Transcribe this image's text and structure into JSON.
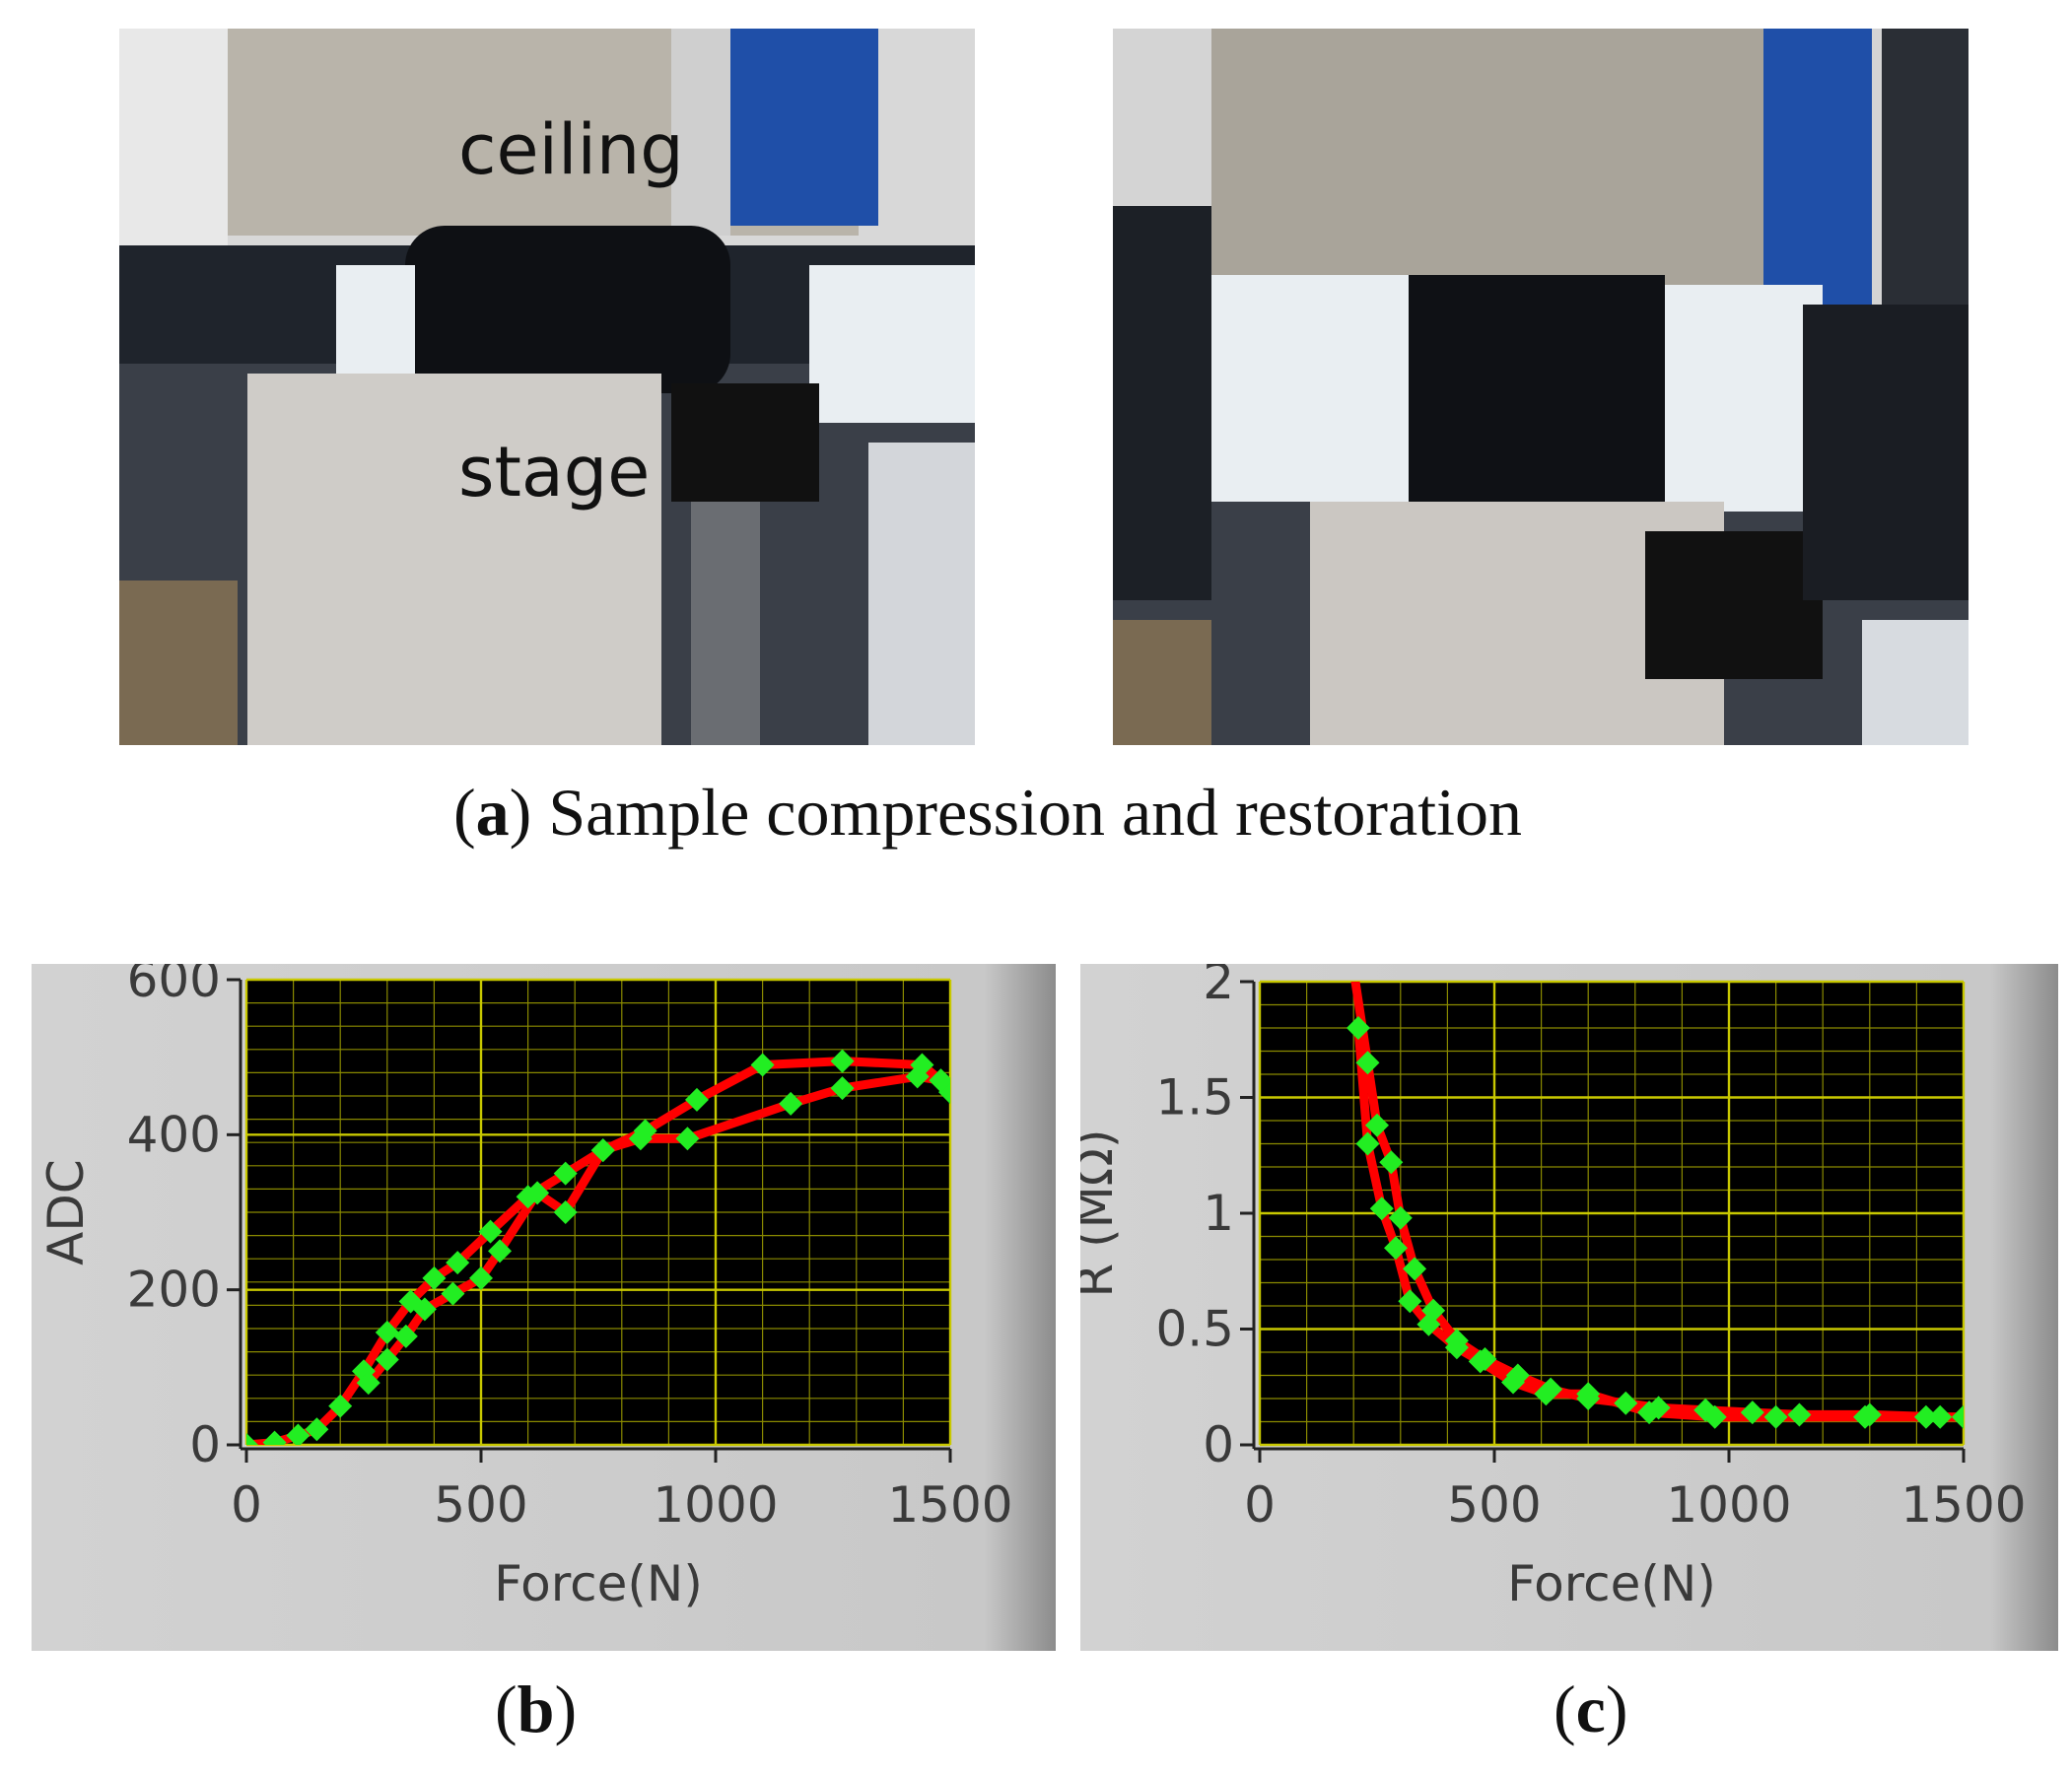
{
  "photos": {
    "ceiling_label": "ceiling",
    "stage_label": "stage",
    "caption_letter": "a",
    "caption_text": "Sample compression and restoration"
  },
  "captions": {
    "b": "b",
    "c": "c"
  },
  "colors": {
    "plot_bg": "#000000",
    "grid": "#8a8a00",
    "line": "#ff0000",
    "marker": "#22ee22",
    "panel_bg": "#c8c8c8"
  },
  "chart_data": [
    {
      "type": "line",
      "xlabel": "Force(N)",
      "ylabel": "ADC",
      "xlim": [
        0,
        1500
      ],
      "ylim": [
        0,
        600
      ],
      "xticks": [
        "0",
        "500",
        "1000",
        "1500"
      ],
      "yticks": [
        "0",
        "200",
        "400",
        "600"
      ],
      "grid": true,
      "series": [
        {
          "x": [
            0,
            60,
            110,
            150,
            200,
            250,
            300,
            350,
            400,
            450,
            520,
            600,
            680,
            760,
            850,
            960,
            1100,
            1270,
            1440,
            1480,
            1500
          ],
          "y": [
            0,
            3,
            12,
            20,
            50,
            95,
            145,
            185,
            215,
            235,
            275,
            320,
            350,
            380,
            405,
            445,
            490,
            495,
            490,
            470,
            455
          ]
        },
        {
          "x": [
            1480,
            1430,
            1270,
            1160,
            940,
            840,
            760,
            680,
            620,
            540,
            500,
            440,
            380,
            340,
            300,
            260
          ],
          "y": [
            470,
            475,
            460,
            440,
            395,
            395,
            380,
            300,
            325,
            250,
            215,
            195,
            175,
            140,
            110,
            80
          ]
        }
      ]
    },
    {
      "type": "line",
      "xlabel": "Force(N)",
      "ylabel": "R (MΩ)",
      "xlim": [
        0,
        1500
      ],
      "ylim": [
        0,
        2
      ],
      "xticks": [
        "0",
        "500",
        "1000",
        "1500"
      ],
      "yticks": [
        "0",
        "0.5",
        "1",
        "1.5",
        "2"
      ],
      "grid": true,
      "series": [
        {
          "x": [
            200,
            230,
            250,
            280,
            300,
            330,
            370,
            420,
            480,
            550,
            620,
            700,
            780,
            850,
            950,
            1050,
            1150,
            1300,
            1450,
            1500
          ],
          "y": [
            2.05,
            1.65,
            1.38,
            1.22,
            0.98,
            0.76,
            0.58,
            0.45,
            0.37,
            0.3,
            0.24,
            0.2,
            0.18,
            0.16,
            0.15,
            0.14,
            0.13,
            0.13,
            0.12,
            0.12
          ]
        },
        {
          "x": [
            1500,
            1420,
            1290,
            1100,
            970,
            830,
            700,
            610,
            540,
            470,
            420,
            360,
            320,
            290,
            260,
            230,
            210
          ],
          "y": [
            0.12,
            0.12,
            0.12,
            0.12,
            0.12,
            0.14,
            0.22,
            0.22,
            0.27,
            0.36,
            0.42,
            0.52,
            0.62,
            0.85,
            1.02,
            1.3,
            1.8
          ]
        }
      ]
    }
  ]
}
